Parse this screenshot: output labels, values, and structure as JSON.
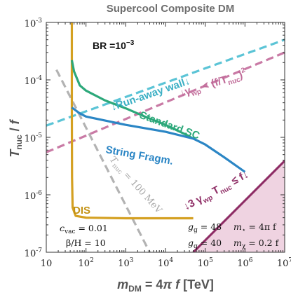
{
  "chart_data": {
    "type": "line",
    "title": "Supercool Composite DM",
    "xlabel": "m_DM = 4π f   [TeV]",
    "ylabel": "T_nuc / f",
    "xscale": "log",
    "yscale": "log",
    "xlim": [
      10,
      10000000
    ],
    "ylim": [
      1e-07,
      0.001
    ],
    "x_ticks": [
      {
        "v": 10,
        "base": "10",
        "exp": ""
      },
      {
        "v": 100,
        "base": "10",
        "exp": "2"
      },
      {
        "v": 1000,
        "base": "10",
        "exp": "3"
      },
      {
        "v": 10000,
        "base": "10",
        "exp": "4"
      },
      {
        "v": 100000,
        "base": "10",
        "exp": "5"
      },
      {
        "v": 1000000,
        "base": "10",
        "exp": "6"
      },
      {
        "v": 10000000,
        "base": "10",
        "exp": "7"
      }
    ],
    "y_ticks": [
      {
        "v": 1e-07,
        "base": "10",
        "exp": "-7"
      },
      {
        "v": 1e-06,
        "base": "10",
        "exp": "-6"
      },
      {
        "v": 1e-05,
        "base": "10",
        "exp": "-5"
      },
      {
        "v": 0.0001,
        "base": "10",
        "exp": "-4"
      },
      {
        "v": 0.001,
        "base": "10",
        "exp": "-3"
      }
    ],
    "series": [
      {
        "name": "DIS",
        "color": "#d4a021",
        "style": "solid",
        "points": [
          [
            44,
            0.001
          ],
          [
            44,
            3e-05
          ],
          [
            44.5,
            2e-06
          ],
          [
            46,
            6e-07
          ],
          [
            55,
            4.3e-07
          ],
          [
            100,
            4e-07
          ],
          [
            1000,
            3.9e-07
          ],
          [
            10000,
            3.9e-07
          ],
          [
            50000,
            3.9e-07
          ]
        ]
      },
      {
        "name": "Standard SC",
        "color": "#2ca87a",
        "style": "solid",
        "points": [
          [
            44,
            0.00022
          ],
          [
            50,
            0.00014
          ],
          [
            70,
            8e-05
          ],
          [
            100,
            6.5e-05
          ],
          [
            300,
            4.4e-05
          ],
          [
            1000,
            3.2e-05
          ],
          [
            3000,
            2.3e-05
          ],
          [
            10000,
            1.65e-05
          ],
          [
            30000,
            1.15e-05
          ],
          [
            50000,
            9.5e-06
          ]
        ]
      },
      {
        "name": "String Fragm.",
        "color": "#2b86c5",
        "style": "solid",
        "points": [
          [
            44,
            3.3e-05
          ],
          [
            70,
            2.6e-05
          ],
          [
            100,
            2.3e-05
          ],
          [
            1000,
            1.65e-05
          ],
          [
            10000,
            1.25e-05
          ],
          [
            50000,
            9.5e-06
          ],
          [
            100000,
            7.5e-06
          ],
          [
            300000,
            4.5e-06
          ],
          [
            1000000,
            2.5e-06
          ]
        ]
      },
      {
        "name": "Run-away wall",
        "color": "#5bc4d6",
        "style": "dashed",
        "points": [
          [
            10,
            1.6e-05
          ],
          [
            10000000,
            0.0005
          ]
        ]
      },
      {
        "name": "γ_wp < (f/T_nuc)^2",
        "color": "#c97aa5",
        "style": "dashed",
        "points": [
          [
            10,
            5.5e-06
          ],
          [
            10000000,
            0.0003
          ]
        ]
      },
      {
        "name": "T_nuc = 100 MeV",
        "color": "#b3b3b3",
        "style": "dashed",
        "points": [
          [
            18,
            0.00015
          ],
          [
            4000,
            1e-07
          ]
        ]
      }
    ],
    "region": {
      "name": "3 γ_wp T_nuc ≤ f",
      "color": "#8f2e66",
      "fill": "#efd3e1",
      "points": [
        [
          50000,
          1e-07
        ],
        [
          10000000,
          3.9e-06
        ]
      ]
    },
    "labels": {
      "br": "BR =10",
      "br_exp": "−3",
      "dis": "DIS",
      "standard": "Standard SC",
      "string": "String Fragm.",
      "runaway": "↓Run-away wall↓",
      "gamma_pre": "↓γ",
      "gamma_sub": "wp",
      "gamma_post": " < (f/T",
      "gamma_sub2": "nuc",
      "gamma_close": ")",
      "gamma_exp": "2",
      "tnuc_main": "T",
      "tnuc_sub": "nuc",
      "tnuc_tail": " = 100 MeV",
      "region_pre": "↓3 γ",
      "region_sub": "wp",
      "region_mid": " T",
      "region_sub2": "nuc",
      "region_post": " ≤ f↓",
      "cvac": "c",
      "cvac_sub": "vac",
      "cvac_val": " = 0.01",
      "beta": "β/H = 10",
      "gg": "g",
      "gg_sub": "g",
      "gg_val": " = 48",
      "mstar": "m",
      "mstar_sub": "⋆",
      "mstar_val": " = 4π f",
      "gq": "g",
      "gq_sub": "q",
      "gq_val": " = 40",
      "mchi": "m",
      "mchi_sub": "χ",
      "mchi_val": " = 0.2 f"
    }
  }
}
